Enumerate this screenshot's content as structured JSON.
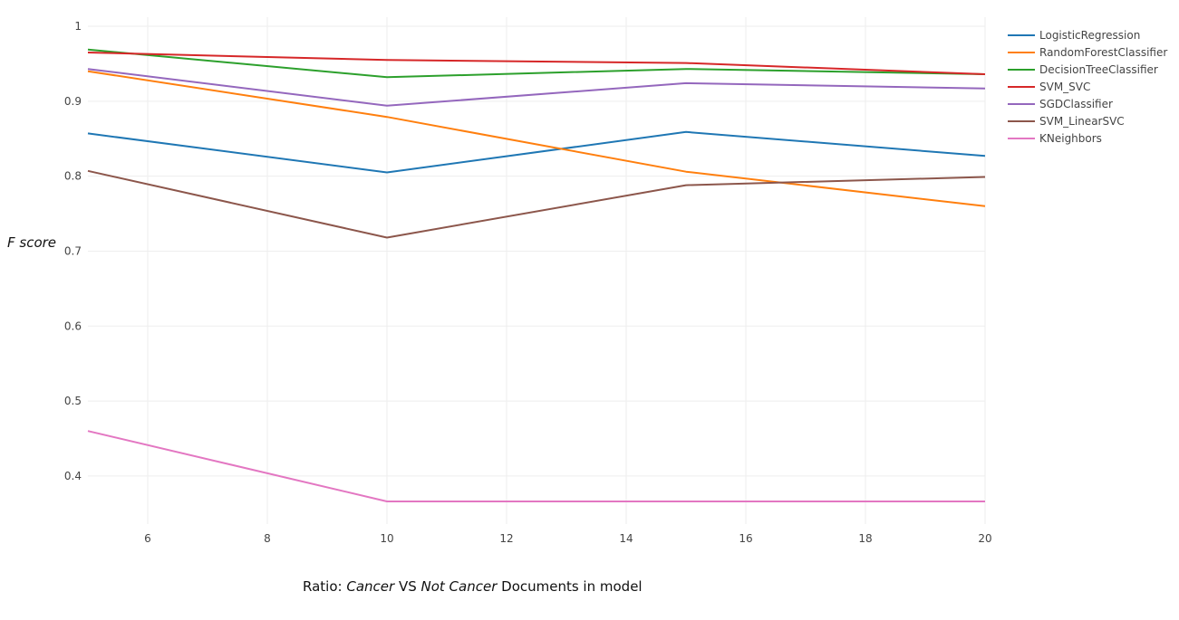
{
  "chart_data": {
    "type": "line",
    "x": [
      5,
      10,
      15,
      20
    ],
    "xlabel_parts": [
      {
        "text": "Ratio: ",
        "italic": false
      },
      {
        "text": "Cancer",
        "italic": true
      },
      {
        "text": " VS ",
        "italic": false
      },
      {
        "text": "Not Cancer",
        "italic": true
      },
      {
        "text": " Documents in model",
        "italic": false
      }
    ],
    "ylabel": "F score",
    "xlim": [
      5,
      20
    ],
    "ylim": [
      0.36,
      1.0
    ],
    "xticks": [
      6,
      8,
      10,
      12,
      14,
      16,
      18,
      20
    ],
    "yticks": [
      0.4,
      0.5,
      0.6,
      0.7,
      0.8,
      0.9,
      1
    ],
    "grid": true,
    "legend_position": "top-right",
    "series": [
      {
        "name": "LogisticRegression",
        "color": "#1f77b4",
        "values": [
          0.857,
          0.805,
          0.859,
          0.827
        ]
      },
      {
        "name": "RandomForestClassifier",
        "color": "#ff7f0e",
        "values": [
          0.94,
          0.879,
          0.806,
          0.76
        ]
      },
      {
        "name": "DecisionTreeClassifier",
        "color": "#2ca02c",
        "values": [
          0.969,
          0.932,
          0.943,
          0.936
        ]
      },
      {
        "name": "SVM_SVC",
        "color": "#d62728",
        "values": [
          0.965,
          0.955,
          0.951,
          0.936
        ]
      },
      {
        "name": "SGDClassifier",
        "color": "#9467bd",
        "values": [
          0.943,
          0.894,
          0.924,
          0.917
        ]
      },
      {
        "name": "SVM_LinearSVC",
        "color": "#8c564b",
        "values": [
          0.807,
          0.718,
          0.788,
          0.799
        ]
      },
      {
        "name": "KNeighbors",
        "color": "#e377c2",
        "values": [
          0.46,
          0.366,
          0.366,
          0.366
        ]
      }
    ]
  }
}
